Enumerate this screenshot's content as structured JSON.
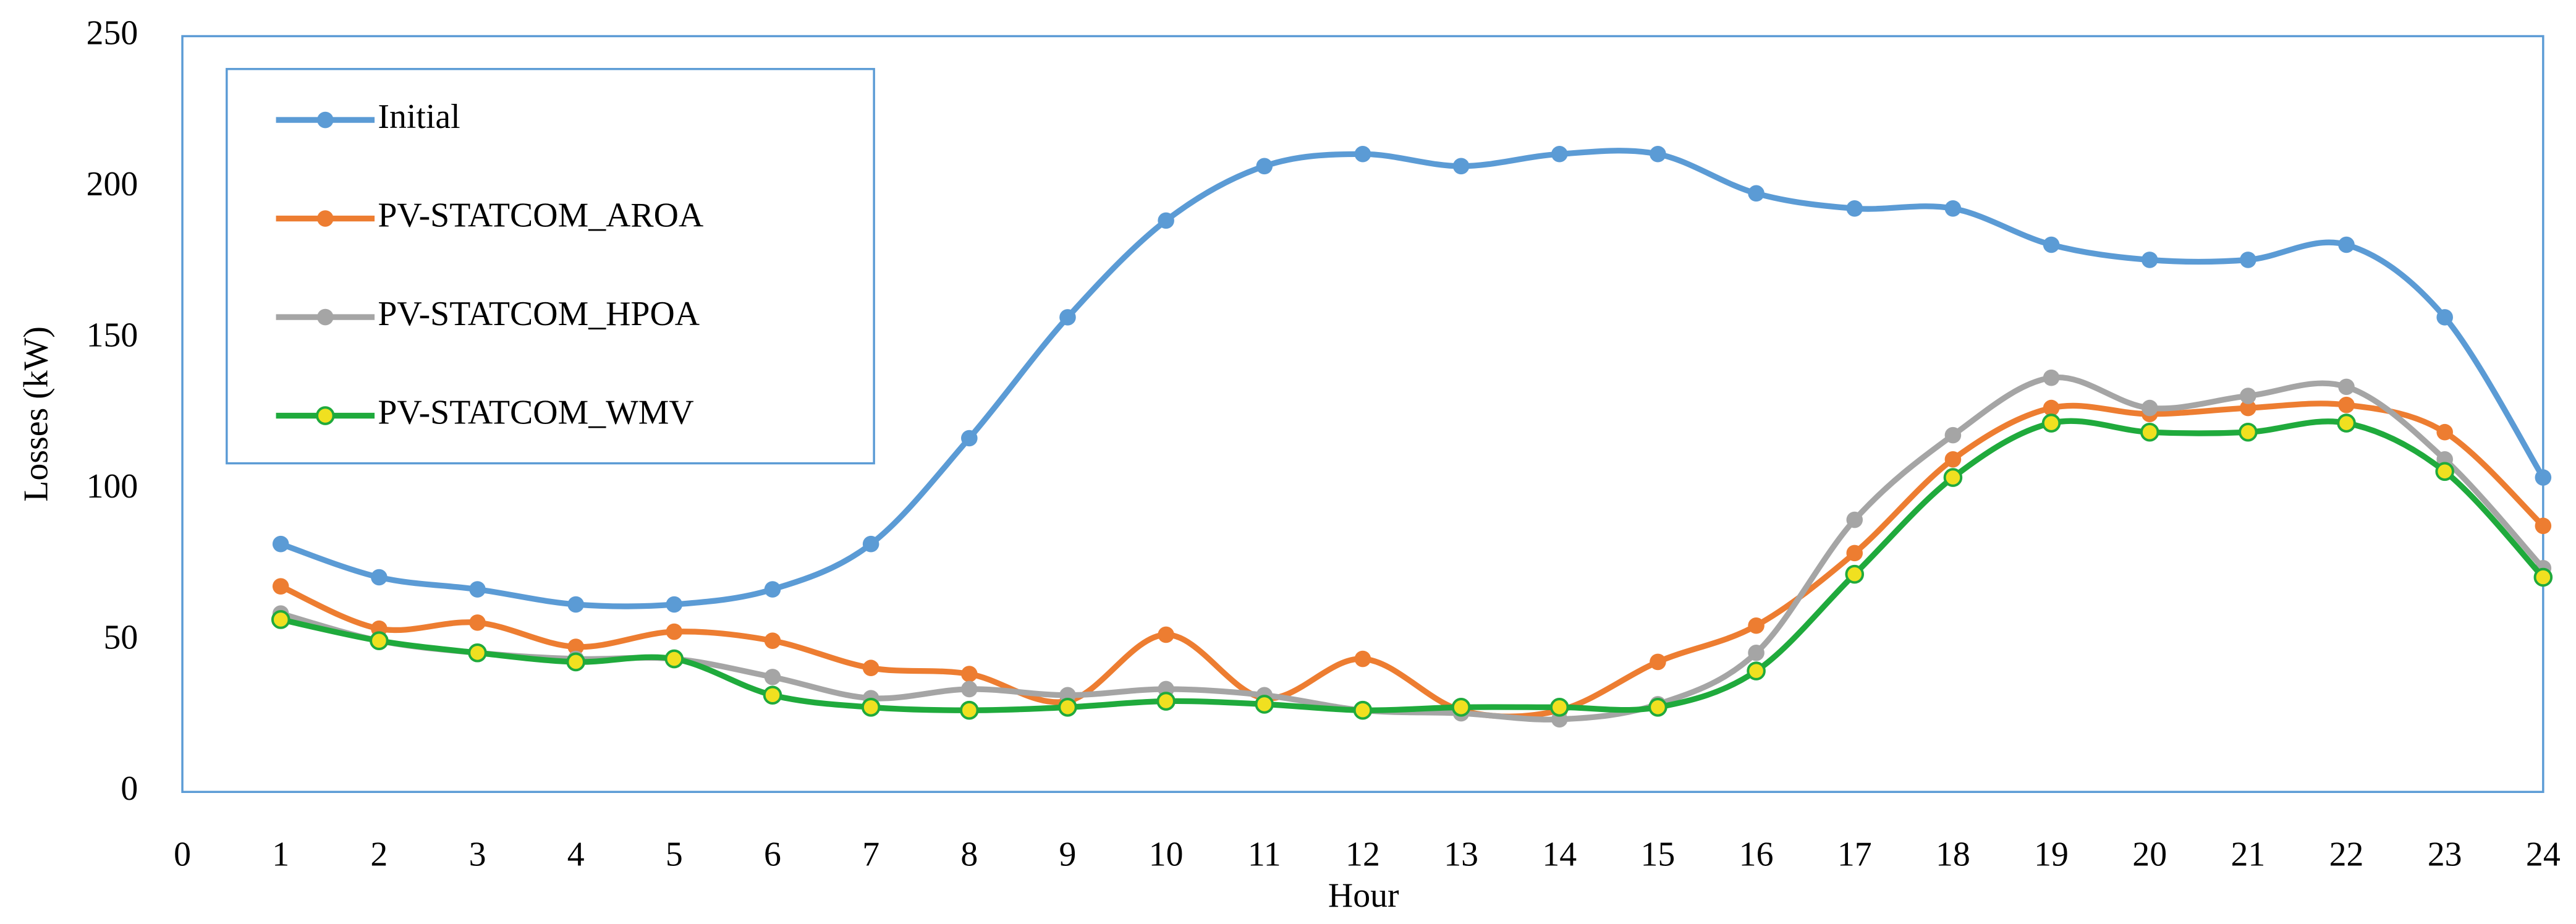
{
  "chart_data": {
    "type": "line",
    "x_label": "Hour",
    "y_label": "Losses (kW)",
    "x": [
      1,
      2,
      3,
      4,
      5,
      6,
      7,
      8,
      9,
      10,
      11,
      12,
      13,
      14,
      15,
      16,
      17,
      18,
      19,
      20,
      21,
      22,
      23,
      24
    ],
    "xlim": [
      0,
      24
    ],
    "xticks": [
      0,
      1,
      2,
      3,
      4,
      5,
      6,
      7,
      8,
      9,
      10,
      11,
      12,
      13,
      14,
      15,
      16,
      17,
      18,
      19,
      20,
      21,
      22,
      23,
      24
    ],
    "ylim": [
      0,
      250
    ],
    "yticks": [
      0,
      50,
      100,
      150,
      200,
      250
    ],
    "legend": "upper left",
    "smooth": true,
    "series": [
      {
        "name": "Initial",
        "color": "#5b9bd5",
        "values": [
          82,
          71,
          67,
          62,
          62,
          67,
          82,
          117,
          157,
          189,
          207,
          211,
          207,
          211,
          211,
          198,
          193,
          193,
          181,
          176,
          176,
          181,
          157,
          104
        ]
      },
      {
        "name": "PV-STATCOM_AROA",
        "color": "#ed7d31",
        "values": [
          68,
          54,
          56,
          48,
          53,
          50,
          41,
          39,
          30,
          52,
          31,
          44,
          27,
          27,
          43,
          55,
          79,
          110,
          127,
          125,
          127,
          128,
          119,
          88
        ]
      },
      {
        "name": "PV-STATCOM_HPOA",
        "color": "#a5a5a5",
        "values": [
          59,
          50,
          46,
          44,
          44,
          38,
          31,
          34,
          32,
          34,
          32,
          27,
          26,
          24,
          29,
          46,
          90,
          118,
          137,
          127,
          131,
          134,
          110,
          74
        ]
      },
      {
        "name": "PV-STATCOM_WMV",
        "color": "#1faa3c",
        "marker_face": "#f0e020",
        "values": [
          57,
          50,
          46,
          43,
          44,
          32,
          28,
          27,
          28,
          30,
          29,
          27,
          28,
          28,
          28,
          40,
          72,
          104,
          122,
          119,
          119,
          122,
          106,
          71
        ]
      }
    ]
  }
}
